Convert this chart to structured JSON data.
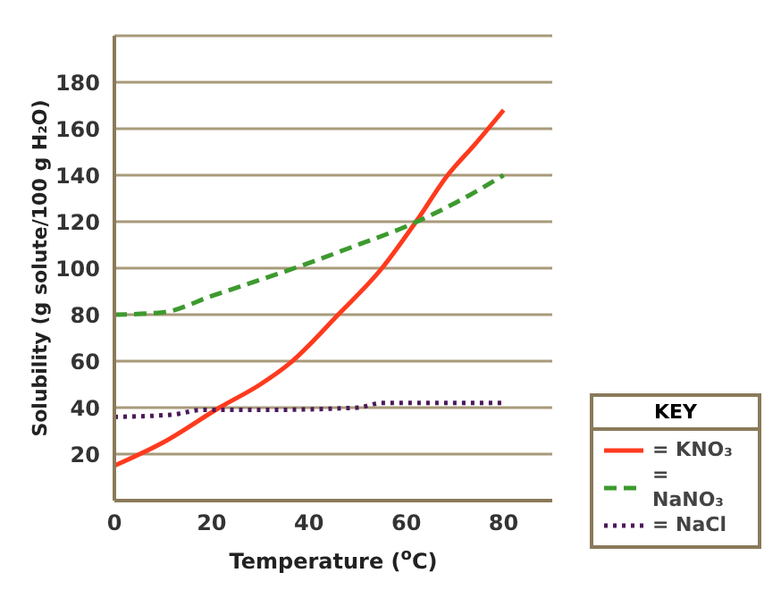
{
  "chart_data": {
    "type": "line",
    "xlabel": "Temperature ($^{o}$C)",
    "ylabel": "Solubility (g solute/100 g H₂O)",
    "legend_title": "KEY",
    "xlim": [
      0,
      90
    ],
    "xticks": [
      0,
      20,
      40,
      60,
      80
    ],
    "ylim": [
      0,
      200
    ],
    "yticks": [
      20,
      40,
      60,
      80,
      100,
      120,
      140,
      160,
      180
    ],
    "grid": "y",
    "legend": "right",
    "marker": "none",
    "series": [
      {
        "name": "= KNO₃",
        "color": "#ff3a1e",
        "line_style": "solid",
        "x": [
          0,
          10,
          21.6,
          30,
          36,
          46,
          55,
          62,
          68.5,
          74,
          80
        ],
        "values": [
          15,
          25,
          40,
          50,
          59,
          80,
          100,
          120,
          140,
          153,
          168
        ]
      },
      {
        "name": "= NaNO₃",
        "color": "#3d9a2e",
        "line_style": "dashed",
        "x": [
          0,
          10,
          20,
          30,
          37,
          50,
          60,
          70,
          80
        ],
        "values": [
          80,
          81,
          88,
          95,
          100,
          110,
          118,
          128,
          140
        ]
      },
      {
        "name": "= NaCl",
        "color": "#4b1a5a",
        "line_style": "dotted",
        "x": [
          0,
          12,
          18,
          30,
          50,
          55,
          80
        ],
        "values": [
          36,
          37,
          39,
          39,
          40,
          42,
          42
        ]
      }
    ]
  }
}
